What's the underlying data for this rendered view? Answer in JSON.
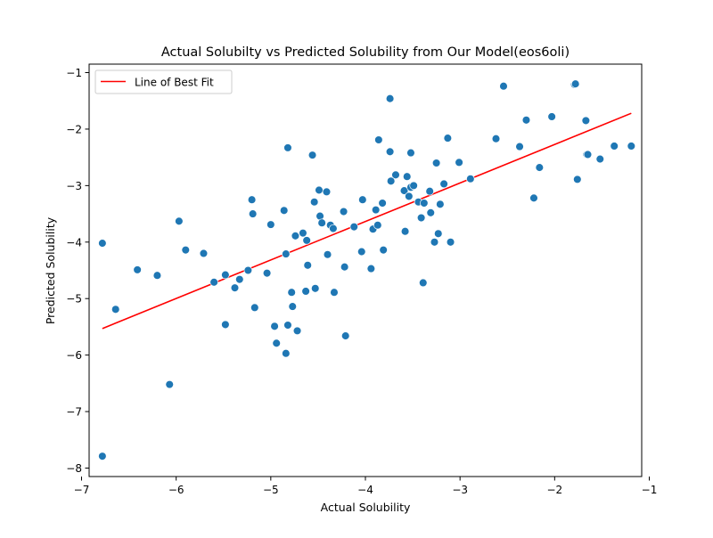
{
  "chart_data": {
    "type": "scatter",
    "title": "Actual Solubilty vs Predicted Solubility from Our Model(eos6oli)",
    "xlabel": "Actual Solubility",
    "ylabel": "Predicted Solubility",
    "xlim": [
      -6.92,
      -1.08
    ],
    "ylim": [
      -8.15,
      -0.85
    ],
    "xticks": [
      -7,
      -6,
      -5,
      -4,
      -3,
      -2,
      -1
    ],
    "yticks": [
      -8,
      -7,
      -6,
      -5,
      -4,
      -3,
      -2,
      -1
    ],
    "xtick_labels": [
      "−7",
      "−6",
      "−5",
      "−4",
      "−3",
      "−2",
      "−1"
    ],
    "ytick_labels": [
      "−8",
      "−7",
      "−6",
      "−5",
      "−4",
      "−3",
      "−2",
      "−1"
    ],
    "grid": false,
    "legend_position": "top-left",
    "colors": {
      "points": "#1f77b4",
      "fit_line": "#ff0000"
    },
    "series": [
      {
        "kind": "points",
        "x": [
          -6.78,
          -6.78,
          -6.64,
          -6.41,
          -6.2,
          -6.07,
          -5.97,
          -5.9,
          -5.71,
          -5.6,
          -5.48,
          -5.48,
          -5.38,
          -5.33,
          -5.24,
          -5.2,
          -5.19,
          -5.17,
          -5.04,
          -5.0,
          -4.96,
          -4.94,
          -4.86,
          -4.84,
          -4.84,
          -4.82,
          -4.82,
          -4.78,
          -4.77,
          -4.74,
          -4.72,
          -4.66,
          -4.63,
          -4.62,
          -4.61,
          -4.56,
          -4.54,
          -4.53,
          -4.49,
          -4.48,
          -4.46,
          -4.41,
          -4.4,
          -4.37,
          -4.34,
          -4.33,
          -4.23,
          -4.22,
          -4.21,
          -4.12,
          -4.04,
          -4.03,
          -3.94,
          -3.92,
          -3.89,
          -3.87,
          -3.86,
          -3.82,
          -3.81,
          -3.74,
          -3.74,
          -3.73,
          -3.68,
          -3.59,
          -3.58,
          -3.56,
          -3.54,
          -3.52,
          -3.52,
          -3.49,
          -3.44,
          -3.41,
          -3.39,
          -3.38,
          -3.32,
          -3.31,
          -3.27,
          -3.25,
          -3.23,
          -3.21,
          -3.17,
          -3.13,
          -3.1,
          -3.01,
          -2.89,
          -2.62,
          -2.54,
          -2.37,
          -2.3,
          -2.22,
          -2.16,
          -2.03,
          -1.79,
          -1.78,
          -1.76,
          -1.67,
          -1.66,
          -1.65,
          -1.52,
          -1.37,
          -1.19
        ],
        "y": [
          -4.02,
          -7.79,
          -5.19,
          -4.49,
          -4.59,
          -6.52,
          -3.63,
          -4.14,
          -4.2,
          -4.71,
          -4.58,
          -5.46,
          -4.81,
          -4.66,
          -4.5,
          -3.25,
          -3.5,
          -5.16,
          -4.55,
          -3.69,
          -5.49,
          -5.79,
          -3.44,
          -5.97,
          -4.21,
          -5.47,
          -2.33,
          -4.89,
          -5.14,
          -3.89,
          -5.57,
          -3.84,
          -4.87,
          -3.97,
          -4.41,
          -2.46,
          -3.29,
          -4.82,
          -3.08,
          -3.54,
          -3.66,
          -3.11,
          -4.22,
          -3.7,
          -3.76,
          -4.89,
          -3.46,
          -4.44,
          -5.66,
          -3.73,
          -4.17,
          -3.25,
          -4.47,
          -3.77,
          -3.43,
          -3.7,
          -2.19,
          -3.31,
          -4.14,
          -1.46,
          -2.4,
          -2.92,
          -2.81,
          -3.09,
          -3.81,
          -2.84,
          -3.19,
          -3.03,
          -2.42,
          -3.0,
          -3.29,
          -3.57,
          -4.72,
          -3.31,
          -3.1,
          -3.48,
          -4.0,
          -2.6,
          -3.85,
          -3.33,
          -2.97,
          -2.16,
          -4.0,
          -2.59,
          -2.88,
          -2.17,
          -1.24,
          -2.31,
          -1.84,
          -3.22,
          -2.68,
          -1.78,
          -1.21,
          -1.2,
          -2.89,
          -1.85,
          -2.45,
          -2.45,
          -2.53,
          -2.3,
          -2.3
        ]
      },
      {
        "kind": "line",
        "name": "Line of Best Fit",
        "x": [
          -6.78,
          -1.19
        ],
        "y": [
          -5.53,
          -1.72
        ]
      }
    ]
  }
}
